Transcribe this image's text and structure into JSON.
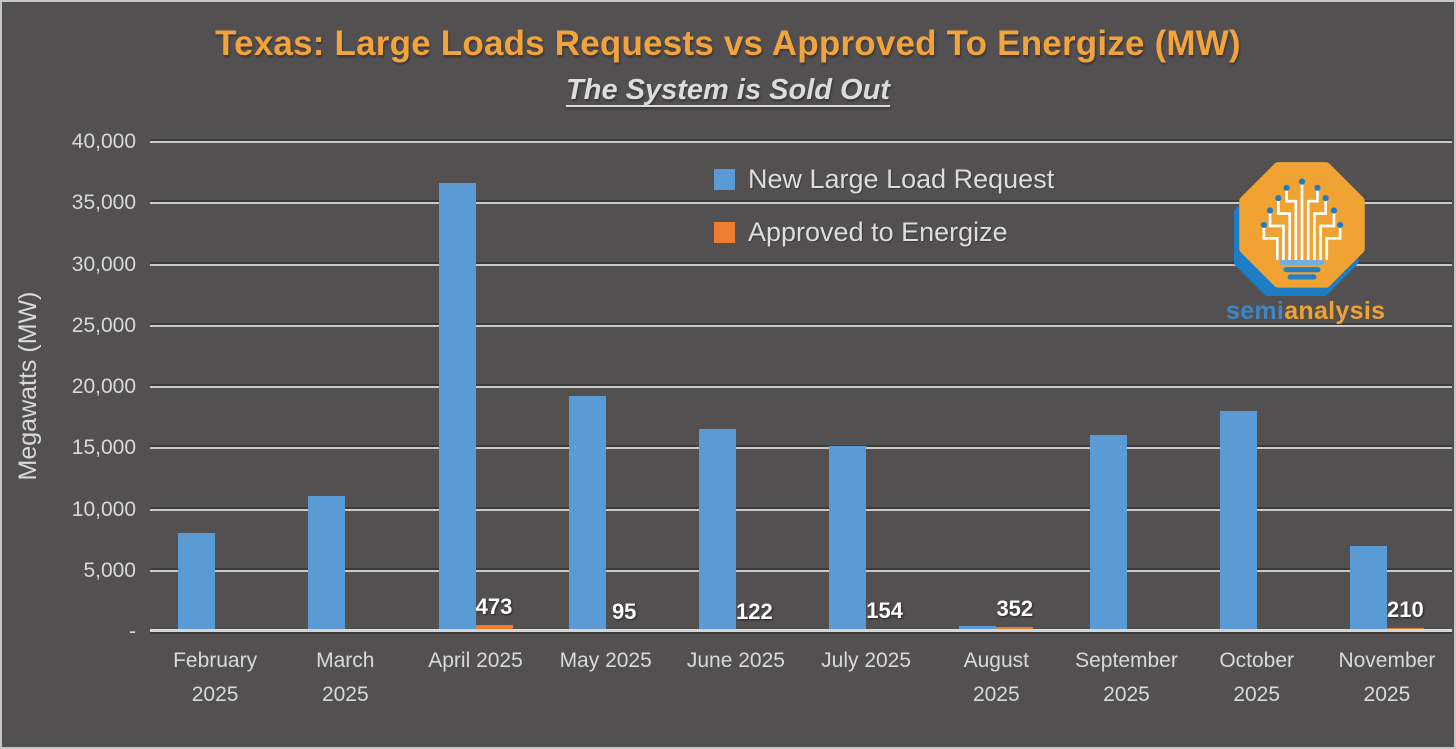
{
  "colors": {
    "background": "#535052",
    "title_orange": "#F2A33C",
    "axis_text": "#D9D9D9",
    "gridline": "#C9C9C9",
    "bar_blue": "#5B9BD5",
    "bar_orange": "#ED7D31",
    "logo_blue": "#1D7DC4",
    "logo_orange": "#F0A232"
  },
  "chart_data": {
    "type": "bar",
    "title": "Texas: Large Loads Requests vs Approved To Energize (MW)",
    "subtitle": "The System is Sold Out",
    "xlabel": "",
    "ylabel": "Megawatts (MW)",
    "ylim": [
      0,
      40000
    ],
    "grid": true,
    "legend_position": "inside-top-center",
    "yticks": [
      {
        "value": 40000,
        "label": "40,000"
      },
      {
        "value": 35000,
        "label": "35,000"
      },
      {
        "value": 30000,
        "label": "30,000"
      },
      {
        "value": 25000,
        "label": "25,000"
      },
      {
        "value": 20000,
        "label": "20,000"
      },
      {
        "value": 15000,
        "label": "15,000"
      },
      {
        "value": 10000,
        "label": "10,000"
      },
      {
        "value": 5000,
        "label": "5,000"
      },
      {
        "value": 0,
        "label": "-"
      }
    ],
    "categories": [
      "February 2025",
      "March 2025",
      "April 2025",
      "May 2025",
      "June 2025",
      "July 2025",
      "August 2025",
      "September 2025",
      "October 2025",
      "November 2025"
    ],
    "category_label_lines": [
      [
        "February",
        "2025"
      ],
      [
        "March",
        "2025"
      ],
      [
        "April 2025"
      ],
      [
        "May 2025"
      ],
      [
        "June 2025"
      ],
      [
        "July 2025"
      ],
      [
        "August",
        "2025"
      ],
      [
        "September",
        "2025"
      ],
      [
        "October",
        "2025"
      ],
      [
        "November",
        "2025"
      ]
    ],
    "series": [
      {
        "name": "New Large Load Request",
        "color": "#5B9BD5",
        "values": [
          8000,
          11000,
          36600,
          19200,
          16500,
          15100,
          400,
          16000,
          18000,
          6900
        ],
        "data_labels": [
          "",
          "",
          "",
          "",
          "",
          "",
          "",
          "",
          "",
          ""
        ]
      },
      {
        "name": "Approved to Energize",
        "color": "#ED7D31",
        "values": [
          0,
          0,
          473,
          95,
          122,
          154,
          352,
          0,
          0,
          210
        ],
        "data_labels": [
          "",
          "",
          "473",
          "95",
          "122",
          "154",
          "352",
          "",
          "",
          "210"
        ]
      }
    ]
  },
  "logo": {
    "wordmark": [
      {
        "text": "semi",
        "color": "#3E86C6"
      },
      {
        "text": "analysis",
        "color": "#F0A232"
      }
    ]
  }
}
